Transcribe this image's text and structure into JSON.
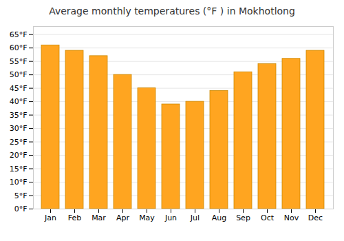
{
  "chart_data": {
    "type": "bar",
    "title": "Average monthly temperatures (°F ) in Mokhotlong",
    "categories": [
      "Jan",
      "Feb",
      "Mar",
      "Apr",
      "May",
      "Jun",
      "Jul",
      "Aug",
      "Sep",
      "Oct",
      "Nov",
      "Dec"
    ],
    "values": [
      61,
      59,
      57,
      50,
      45,
      39,
      40,
      44,
      51,
      54,
      56,
      59
    ],
    "color": "#FFA520",
    "ylim": [
      0,
      68
    ],
    "yticks": [
      {
        "value": 0,
        "label": "0°F"
      },
      {
        "value": 5,
        "label": "5°F"
      },
      {
        "value": 10,
        "label": "10°F"
      },
      {
        "value": 15,
        "label": "15°F"
      },
      {
        "value": 20,
        "label": "20°F"
      },
      {
        "value": 25,
        "label": "25°F"
      },
      {
        "value": 30,
        "label": "30°F"
      },
      {
        "value": 35,
        "label": "35°F"
      },
      {
        "value": 40,
        "label": "40°F"
      },
      {
        "value": 45,
        "label": "45°F"
      },
      {
        "value": 50,
        "label": "50°F"
      },
      {
        "value": 55,
        "label": "55°F"
      },
      {
        "value": 60,
        "label": "60°F"
      },
      {
        "value": 65,
        "label": "65°F"
      }
    ],
    "grid": true
  }
}
